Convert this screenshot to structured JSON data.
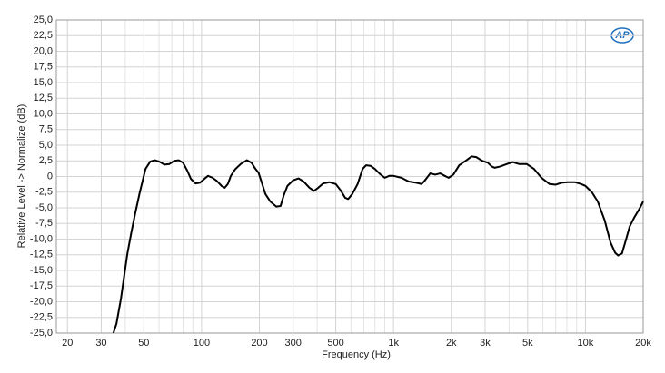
{
  "chart_data": {
    "type": "line",
    "logo": "AP",
    "x_label": "Frequency (Hz)",
    "y_label": "Relative Level -> Normalize (dB)",
    "xscale": "log",
    "xlim": [
      17.5,
      20000
    ],
    "ylim": [
      -25,
      25
    ],
    "grid": true,
    "xticks": [
      20,
      30,
      50,
      100,
      200,
      300,
      500,
      {
        "value": 1000,
        "label": "1k"
      },
      {
        "value": 2000,
        "label": "2k"
      },
      {
        "value": 3000,
        "label": "3k"
      },
      {
        "value": 5000,
        "label": "5k"
      },
      {
        "value": 10000,
        "label": "10k"
      },
      {
        "value": 20000,
        "label": "20k"
      }
    ],
    "xminor_ticks": [
      40,
      60,
      70,
      80,
      90,
      400,
      600,
      700,
      800,
      900,
      4000,
      6000,
      7000,
      8000,
      9000
    ],
    "yticks": [
      {
        "value": 25,
        "label": "25,0"
      },
      {
        "value": 22.5,
        "label": "22,5"
      },
      {
        "value": 20,
        "label": "20,0"
      },
      {
        "value": 17.5,
        "label": "17,5"
      },
      {
        "value": 15,
        "label": "15,0"
      },
      {
        "value": 12.5,
        "label": "12,5"
      },
      {
        "value": 10,
        "label": "10,0"
      },
      {
        "value": 7.5,
        "label": "7,5"
      },
      {
        "value": 5,
        "label": "5,0"
      },
      {
        "value": 2.5,
        "label": "2,5"
      },
      0,
      {
        "value": -2.5,
        "label": "-2,5"
      },
      {
        "value": -5,
        "label": "-5,0"
      },
      {
        "value": -7.5,
        "label": "-7,5"
      },
      {
        "value": -10,
        "label": "-10,0"
      },
      {
        "value": -12.5,
        "label": "-12,5"
      },
      {
        "value": -15,
        "label": "-15,0"
      },
      {
        "value": -17.5,
        "label": "-17,5"
      },
      {
        "value": -20,
        "label": "-20,0"
      },
      {
        "value": -22.5,
        "label": "-22,5"
      },
      {
        "value": -25,
        "label": "-25,0"
      }
    ],
    "color": "#000000",
    "x": [
      34.7,
      36,
      38,
      41,
      43,
      45,
      47.5,
      51,
      54,
      57,
      60,
      64,
      68,
      72,
      76,
      80,
      84,
      88,
      93,
      98,
      104,
      108,
      114,
      120,
      127,
      132,
      137,
      142,
      150,
      160,
      172,
      182,
      190,
      198,
      206,
      215,
      228,
      245,
      258,
      268,
      280,
      300,
      320,
      340,
      365,
      385,
      405,
      430,
      463,
      500,
      530,
      560,
      580,
      610,
      650,
      690,
      720,
      760,
      800,
      850,
      900,
      950,
      1000,
      1100,
      1200,
      1316,
      1400,
      1450,
      1554,
      1650,
      1750,
      1850,
      1937,
      2050,
      2200,
      2400,
      2551,
      2700,
      2900,
      3100,
      3250,
      3360,
      3600,
      3900,
      4190,
      4500,
      4940,
      5400,
      5900,
      6500,
      7000,
      7500,
      8100,
      8800,
      9500,
      10000,
      10800,
      11600,
      12600,
      13500,
      14300,
      14800,
      15500,
      16300,
      17000,
      18000,
      19000,
      20000
    ],
    "values": [
      -25,
      -23.5,
      -19.5,
      -12.4,
      -9,
      -6,
      -2.7,
      1.2,
      2.4,
      2.6,
      2.4,
      1.9,
      2.0,
      2.5,
      2.6,
      2.2,
      1.0,
      -0.4,
      -1.1,
      -1.0,
      -0.3,
      0.1,
      -0.2,
      -0.7,
      -1.5,
      -1.8,
      -1.2,
      0.1,
      1.2,
      2.0,
      2.6,
      2.2,
      1.3,
      0.6,
      -1.0,
      -2.8,
      -4.0,
      -4.8,
      -4.7,
      -3.0,
      -1.5,
      -0.6,
      -0.3,
      -0.8,
      -1.8,
      -2.3,
      -1.8,
      -1.1,
      -0.9,
      -1.2,
      -2.2,
      -3.4,
      -3.6,
      -2.8,
      -1.2,
      1.2,
      1.8,
      1.7,
      1.2,
      0.4,
      -0.2,
      0.1,
      0.1,
      -0.2,
      -0.8,
      -1.0,
      -1.2,
      -0.7,
      0.5,
      0.3,
      0.5,
      0.1,
      -0.2,
      0.3,
      1.8,
      2.6,
      3.2,
      3.1,
      2.5,
      2.2,
      1.6,
      1.4,
      1.6,
      2.0,
      2.3,
      2.0,
      2.0,
      1.2,
      -0.2,
      -1.2,
      -1.3,
      -1.0,
      -0.9,
      -0.9,
      -1.2,
      -1.5,
      -2.5,
      -4.0,
      -7.0,
      -10.5,
      -12.2,
      -12.6,
      -12.3,
      -10,
      -8,
      -6.5,
      -5.3,
      -4
    ]
  }
}
